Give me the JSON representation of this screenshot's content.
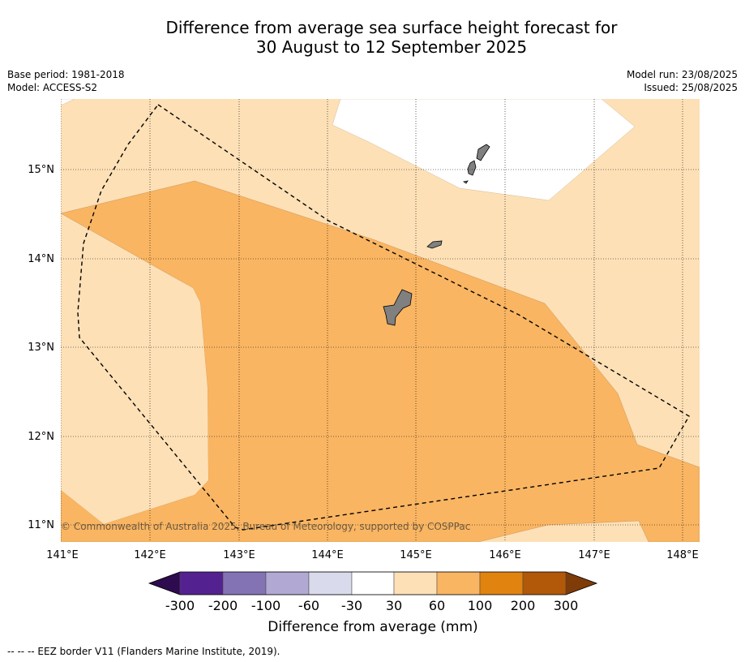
{
  "header": {
    "title_line1": "Difference from average sea surface height forecast for",
    "title_line2": "30 August to 12 September 2025",
    "base_period": "Base period: 1981-2018",
    "model": "Model: ACCESS-S2",
    "model_run": "Model run: 23/08/2025",
    "issued": "Issued: 25/08/2025"
  },
  "map": {
    "lon_labels": [
      "141°E",
      "142°E",
      "143°E",
      "144°E",
      "145°E",
      "146°E",
      "147°E",
      "148°E"
    ],
    "lat_labels": [
      "15°N",
      "14°N",
      "13°N",
      "12°N",
      "11°N"
    ],
    "copyright": "© Commonwealth of Australia 2025, Bureau of Meteorology, supported by COSPPac",
    "colors": {
      "band_30_60": "#fde0b6",
      "band_60_100": "#f9b562",
      "band_neutral": "#ffffff",
      "land": "#808080",
      "eez_line": "#000000"
    }
  },
  "colorbar": {
    "ticks": [
      "-300",
      "-200",
      "-100",
      "-60",
      "-30",
      "30",
      "60",
      "100",
      "200",
      "300"
    ],
    "colors": [
      "#2d0b4e",
      "#542290",
      "#8473b4",
      "#b1a9d3",
      "#d9daec",
      "#ffffff",
      "#fde0b6",
      "#f9b562",
      "#e0830f",
      "#b25809",
      "#7f3b08"
    ],
    "title": "Difference from average (mm)"
  },
  "footnote": "--  --  -- EEZ border V11 (Flanders Marine Institute, 2019)."
}
